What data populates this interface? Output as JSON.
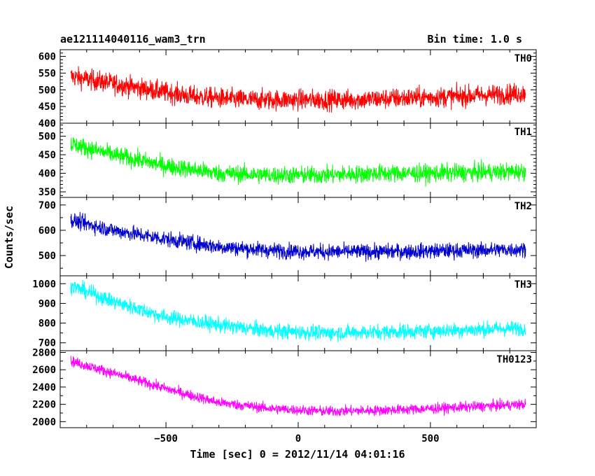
{
  "header": {
    "title": "ae121114040116_wam3_trn",
    "bin_time": "Bin time: 1.0 s"
  },
  "axes": {
    "xlabel": "Time [sec] 0 = 2012/11/14 04:01:16",
    "ylabel": "Counts/sec"
  },
  "chart_data": {
    "type": "line",
    "title": "ae121114040116_wam3_trn",
    "subtitle": "Bin time: 1.0 s",
    "xlabel": "Time [sec] 0 = 2012/11/14 04:01:16",
    "ylabel": "Counts/sec",
    "xlim": [
      -900,
      900
    ],
    "x_ticks": [
      -500,
      0,
      500
    ],
    "x_tick_labels": [
      "−500",
      "0",
      "500"
    ],
    "x_range_data": [
      -860,
      860
    ],
    "grid": false,
    "legend": "none",
    "panels": [
      {
        "name": "TH0",
        "color": "#ff0000",
        "ylim": [
          400,
          620
        ],
        "y_ticks": [
          400,
          450,
          500,
          550,
          600
        ],
        "trend": [
          [
            -860,
            540
          ],
          [
            -600,
            505
          ],
          [
            -400,
            480
          ],
          [
            -200,
            470
          ],
          [
            0,
            470
          ],
          [
            200,
            470
          ],
          [
            400,
            475
          ],
          [
            600,
            480
          ],
          [
            860,
            490
          ]
        ],
        "noise": 28
      },
      {
        "name": "TH1",
        "color": "#00ff00",
        "ylim": [
          335,
          535
        ],
        "y_ticks": [
          350,
          400,
          450,
          500
        ],
        "trend": [
          [
            -860,
            480
          ],
          [
            -700,
            450
          ],
          [
            -500,
            420
          ],
          [
            -300,
            400
          ],
          [
            -100,
            395
          ],
          [
            100,
            395
          ],
          [
            300,
            400
          ],
          [
            500,
            400
          ],
          [
            860,
            405
          ]
        ],
        "noise": 22
      },
      {
        "name": "TH2",
        "color": "#0000cc",
        "ylim": [
          420,
          730
        ],
        "y_ticks": [
          500,
          600,
          700
        ],
        "trend": [
          [
            -860,
            640
          ],
          [
            -700,
            600
          ],
          [
            -500,
            565
          ],
          [
            -300,
            535
          ],
          [
            -100,
            520
          ],
          [
            100,
            515
          ],
          [
            300,
            515
          ],
          [
            500,
            518
          ],
          [
            860,
            525
          ]
        ],
        "noise": 28
      },
      {
        "name": "TH3",
        "color": "#00ffff",
        "ylim": [
          660,
          1040
        ],
        "y_ticks": [
          700,
          800,
          900,
          1000
        ],
        "trend": [
          [
            -860,
            990
          ],
          [
            -700,
            910
          ],
          [
            -500,
            830
          ],
          [
            -300,
            790
          ],
          [
            -100,
            760
          ],
          [
            100,
            750
          ],
          [
            300,
            755
          ],
          [
            500,
            760
          ],
          [
            860,
            775
          ]
        ],
        "noise": 35
      },
      {
        "name": "TH0123",
        "color": "#ff00ff",
        "ylim": [
          1930,
          2820
        ],
        "y_ticks": [
          2000,
          2200,
          2400,
          2600,
          2800
        ],
        "trend": [
          [
            -860,
            2700
          ],
          [
            -700,
            2560
          ],
          [
            -500,
            2380
          ],
          [
            -300,
            2220
          ],
          [
            -100,
            2150
          ],
          [
            100,
            2120
          ],
          [
            300,
            2130
          ],
          [
            500,
            2150
          ],
          [
            860,
            2200
          ]
        ],
        "noise": 55
      }
    ]
  }
}
